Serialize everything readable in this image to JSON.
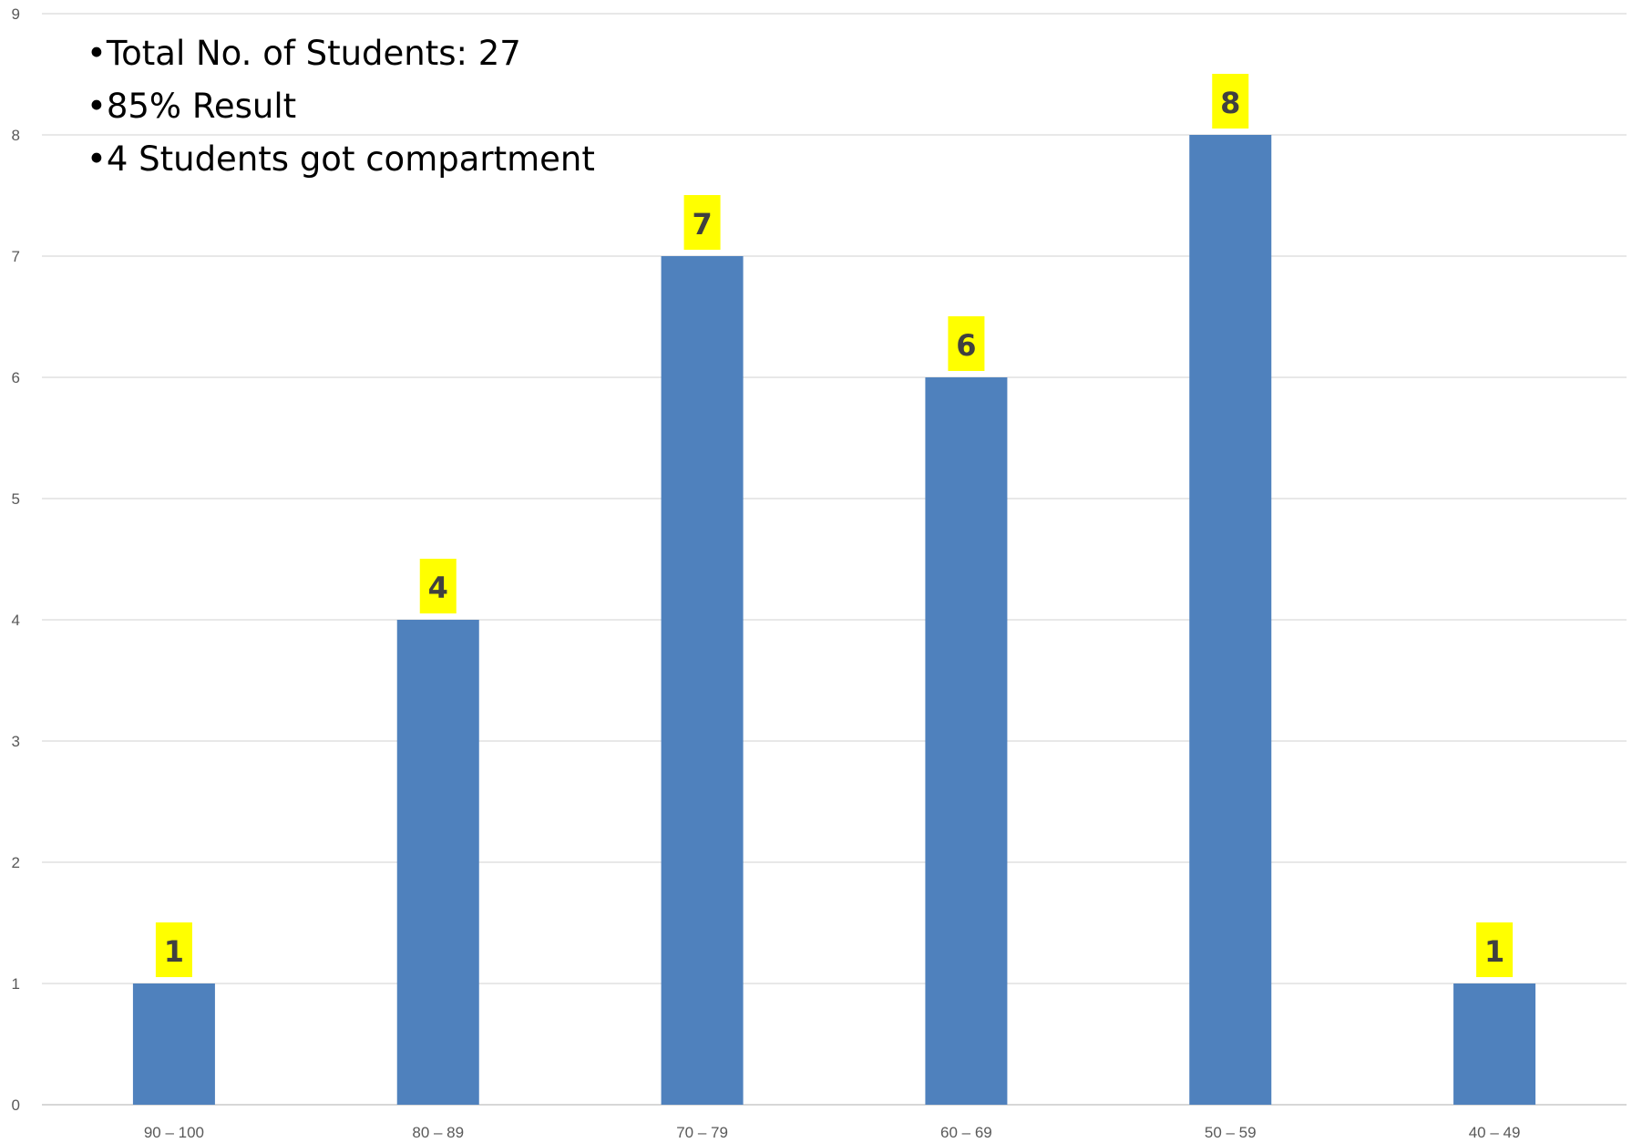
{
  "notes": [
    "Total No. of Students:  27",
    "85% Result",
    "4 Students got compartment"
  ],
  "chart_data": {
    "type": "bar",
    "categories": [
      "90 – 100",
      "80 – 89",
      "70 – 79",
      "60 – 69",
      "50 – 59",
      "40 – 49"
    ],
    "values": [
      1,
      4,
      7,
      6,
      8,
      1
    ],
    "title": "",
    "xlabel": "",
    "ylabel": "",
    "ylim": [
      0,
      9
    ],
    "yticks": [
      0,
      1,
      2,
      3,
      4,
      5,
      6,
      7,
      8,
      9
    ],
    "grid": true,
    "data_labels": true,
    "colors": {
      "bar": "#4f81bd",
      "label_bg": "#ffff00",
      "grid": "#d9d9d9"
    }
  }
}
